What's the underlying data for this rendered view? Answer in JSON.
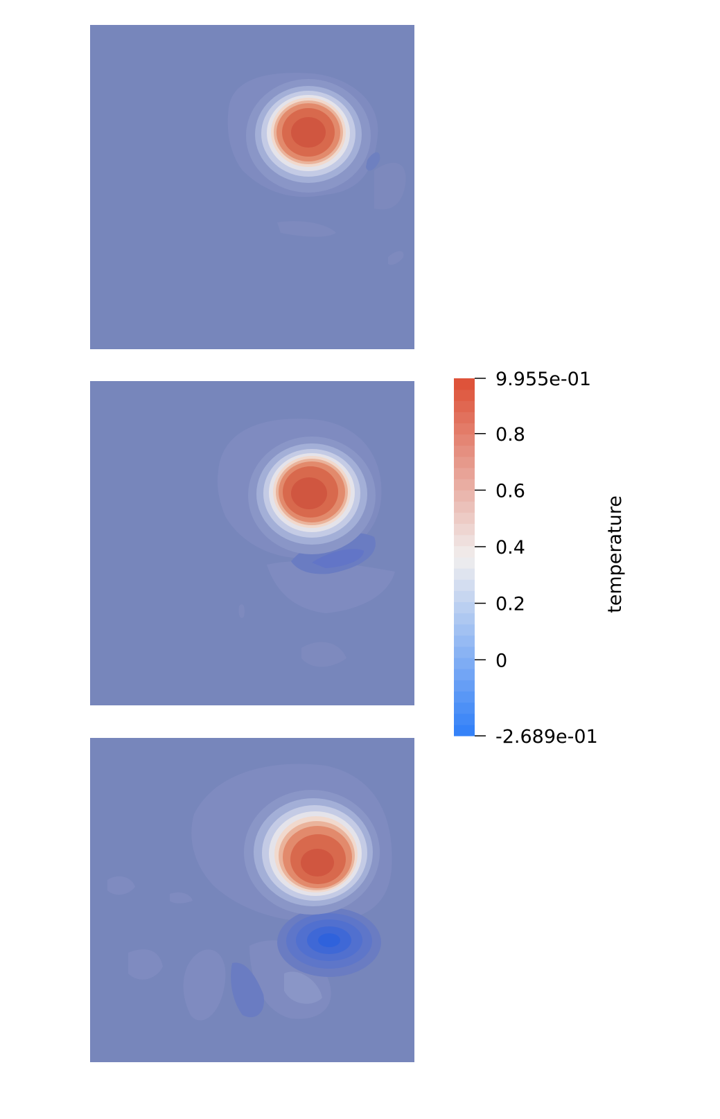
{
  "chart_data": {
    "type": "heatmap",
    "scalar_name": "temperature",
    "colormap": "Cool to Warm",
    "range": [
      -0.2689,
      0.9955
    ],
    "colorbar": {
      "title": "temperature",
      "max_label": "9.955e-01",
      "min_label": "-2.689e-01",
      "tick_labels": [
        "0.8",
        "0.6",
        "0.4",
        "0.2",
        "0"
      ],
      "tick_values": [
        0.8,
        0.6,
        0.4,
        0.2,
        0.0
      ],
      "placement": "right",
      "orientation": "vertical"
    },
    "colors": {
      "background_field": "#7786bb",
      "warm_max": "#dd4e34",
      "neutral": "#f1eeee",
      "cool_min": "#2f7ef8"
    },
    "panels": [
      {
        "panel": 1,
        "background_value": 0.0,
        "hot_spot_peak": 0.9955,
        "cold_spot_min": -0.02
      },
      {
        "panel": 2,
        "background_value": 0.0,
        "hot_spot_peak": 0.95,
        "cold_spot_min": -0.08
      },
      {
        "panel": 3,
        "background_value": 0.0,
        "hot_spot_peak": 0.92,
        "cold_spot_min": -0.2689
      }
    ]
  }
}
